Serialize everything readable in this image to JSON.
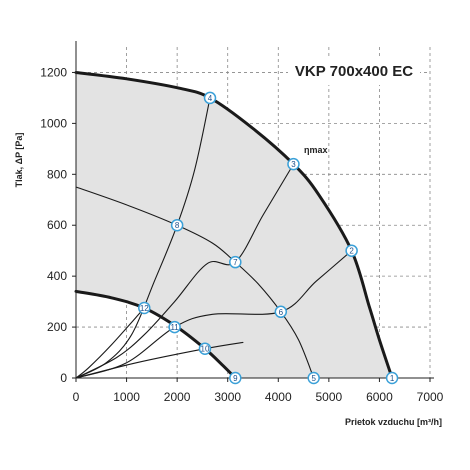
{
  "chart_data": {
    "type": "line",
    "title": "VKP 700x400 EC",
    "xlabel": "Prietok vzduchu  [m³/h]",
    "ylabel": "Tlak, ΔP [Pa]",
    "xlim": [
      0,
      7000
    ],
    "ylim": [
      0,
      1300
    ],
    "xticks": [
      "0",
      "1000",
      "2000",
      "3000",
      "4000",
      "5000",
      "6000",
      "7000"
    ],
    "yticks": [
      "0",
      "200",
      "400",
      "600",
      "800",
      "1000",
      "1200"
    ],
    "grid": true,
    "annotation": "ηmax",
    "series": [
      {
        "role": "max-curve",
        "values": [
          [
            0,
            1200
          ],
          [
            1000,
            1175
          ],
          [
            2000,
            1140
          ],
          [
            2650,
            1100
          ],
          [
            3500,
            980
          ],
          [
            4300,
            840
          ],
          [
            4800,
            720
          ],
          [
            5450,
            500
          ],
          [
            5800,
            280
          ],
          [
            6000,
            150
          ],
          [
            6250,
            0
          ]
        ]
      },
      {
        "role": "min-curve",
        "values": [
          [
            0,
            340
          ],
          [
            700,
            315
          ],
          [
            1350,
            275
          ],
          [
            2000,
            200
          ],
          [
            2550,
            115
          ],
          [
            2900,
            50
          ],
          [
            3150,
            0
          ]
        ]
      },
      {
        "role": "mid-curve",
        "values": [
          [
            0,
            750
          ],
          [
            1000,
            680
          ],
          [
            2000,
            600
          ],
          [
            2700,
            530
          ],
          [
            3150,
            455
          ],
          [
            3600,
            370
          ],
          [
            4050,
            260
          ],
          [
            4400,
            150
          ],
          [
            4700,
            0
          ]
        ]
      },
      {
        "role": "system-curve",
        "values": [
          [
            0,
            0
          ],
          [
            600,
            60
          ],
          [
            1100,
            170
          ],
          [
            1550,
            380
          ],
          [
            2000,
            600
          ],
          [
            2350,
            820
          ],
          [
            2650,
            1100
          ]
        ]
      },
      {
        "role": "system-curve",
        "values": [
          [
            0,
            0
          ],
          [
            800,
            80
          ],
          [
            1350,
            170
          ],
          [
            1950,
            300
          ],
          [
            2600,
            450
          ],
          [
            3150,
            455
          ],
          [
            3700,
            640
          ],
          [
            4300,
            840
          ]
        ]
      },
      {
        "role": "system-curve",
        "values": [
          [
            0,
            0
          ],
          [
            1000,
            60
          ],
          [
            1950,
            200
          ],
          [
            2700,
            250
          ],
          [
            4050,
            260
          ],
          [
            4750,
            380
          ],
          [
            5450,
            500
          ]
        ]
      },
      {
        "role": "system-curve",
        "values": [
          [
            0,
            0
          ],
          [
            250,
            40
          ],
          [
            700,
            130
          ],
          [
            1350,
            275
          ]
        ]
      },
      {
        "role": "system-curve",
        "values": [
          [
            0,
            0
          ],
          [
            1200,
            60
          ],
          [
            2550,
            115
          ],
          [
            3300,
            140
          ]
        ]
      }
    ],
    "points": [
      {
        "label": "1",
        "x": 6250,
        "y": 0
      },
      {
        "label": "2",
        "x": 5450,
        "y": 500
      },
      {
        "label": "3",
        "x": 4300,
        "y": 840
      },
      {
        "label": "4",
        "x": 2650,
        "y": 1100
      },
      {
        "label": "5",
        "x": 4700,
        "y": 0
      },
      {
        "label": "6",
        "x": 4050,
        "y": 260
      },
      {
        "label": "7",
        "x": 3150,
        "y": 455
      },
      {
        "label": "8",
        "x": 2000,
        "y": 600
      },
      {
        "label": "9",
        "x": 3150,
        "y": 0
      },
      {
        "label": "10",
        "x": 2550,
        "y": 115
      },
      {
        "label": "11",
        "x": 1950,
        "y": 200
      },
      {
        "label": "12",
        "x": 1350,
        "y": 275
      }
    ]
  }
}
